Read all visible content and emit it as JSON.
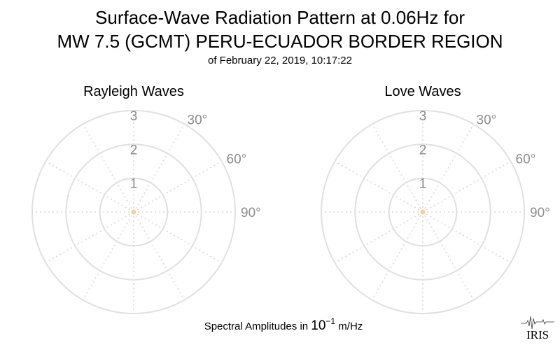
{
  "title_line1": "Surface-Wave Radiation Pattern at 0.06Hz for",
  "title_line2": "MW 7.5 (GCMT) PERU-ECUADOR BORDER REGION",
  "subtitle": "of February 22, 2019, 10:17:22",
  "xlabel_prefix": "Spectral Amplitudes in ",
  "xlabel_base": "10",
  "xlabel_exp": "−1",
  "xlabel_suffix": " m/Hz",
  "logo": "IRIS",
  "colors": {
    "ring": "#e0e0e0",
    "spoke": "#d9d9d9",
    "tick": "#8c8c8c",
    "marker": "#ffcc99"
  },
  "chart_data": [
    {
      "type": "polar",
      "title": "Rayleigh Waves",
      "rlim": [
        0,
        3
      ],
      "r_ticks": [
        "1",
        "2",
        "3"
      ],
      "theta_ticks": [
        "30°",
        "60°",
        "90°"
      ],
      "theta_spacing_deg": 30,
      "grid": true,
      "series": [
        {
          "points": [
            {
              "theta_deg": 0,
              "r": 0
            }
          ]
        }
      ]
    },
    {
      "type": "polar",
      "title": "Love Waves",
      "rlim": [
        0,
        3
      ],
      "r_ticks": [
        "1",
        "2",
        "3"
      ],
      "theta_ticks": [
        "30°",
        "60°",
        "90°"
      ],
      "theta_spacing_deg": 30,
      "grid": true,
      "series": [
        {
          "points": [
            {
              "theta_deg": 0,
              "r": 0
            }
          ]
        }
      ]
    }
  ]
}
